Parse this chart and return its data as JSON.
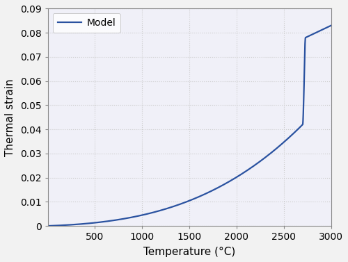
{
  "title": "",
  "xlabel": "Temperature (°C)",
  "ylabel": "Thermal strain",
  "xlim": [
    0,
    3000
  ],
  "ylim": [
    0,
    0.09
  ],
  "xticks": [
    500,
    1000,
    1500,
    2000,
    2500,
    3000
  ],
  "yticks": [
    0,
    0.01,
    0.02,
    0.03,
    0.04,
    0.05,
    0.06,
    0.07,
    0.08,
    0.09
  ],
  "line_color": "#2a52a0",
  "line_width": 1.6,
  "legend_label": "Model",
  "background_color": "#f0f0f8",
  "grid_color": "#cccccc",
  "phase_transition_T": 2700,
  "phase_transition_T2": 2730,
  "strain_at_transition": 0.042,
  "strain_after_transition": 0.078,
  "strain_at_3000": 0.083
}
